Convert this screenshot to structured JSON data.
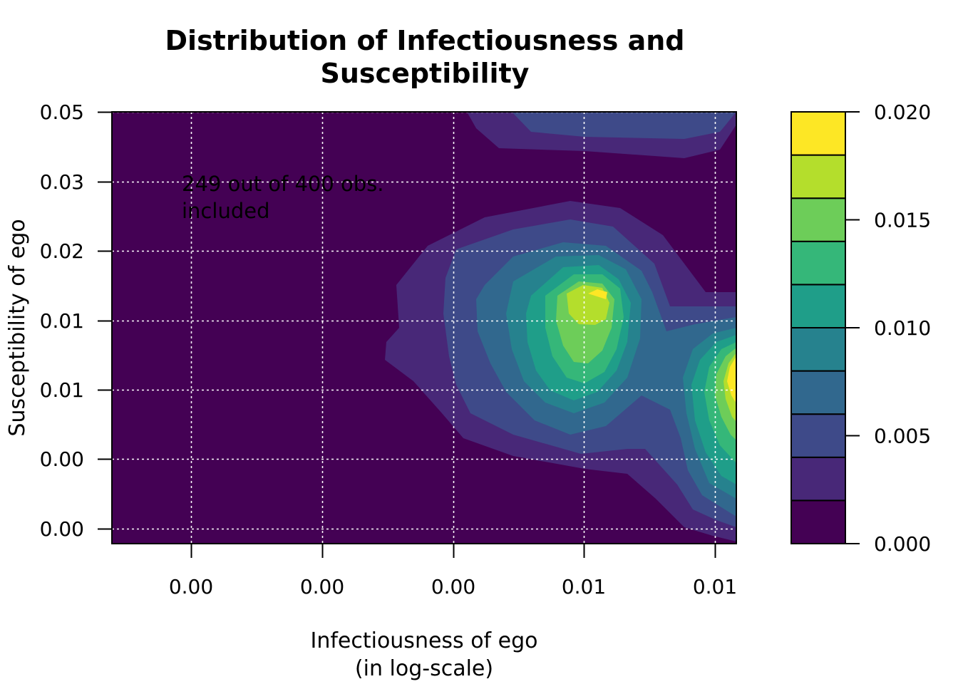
{
  "chart_data": {
    "type": "heatmap",
    "title": [
      "Distribution of Infectiousness and",
      "Susceptibility"
    ],
    "xlabel": [
      "Infectiousness of ego",
      "(in log-scale)"
    ],
    "ylabel": "Susceptibility of ego",
    "annotation": [
      "249 out of 400 obs.",
      "included"
    ],
    "x_ticks": [
      "0.00",
      "0.00",
      "0.00",
      "0.01",
      "0.01"
    ],
    "y_ticks": [
      "0.05",
      "0.03",
      "0.02",
      "0.01",
      "0.01",
      "0.00",
      "0.00"
    ],
    "grid": true,
    "legend": {
      "position": "right",
      "levels": [
        0.0,
        0.002,
        0.004,
        0.006,
        0.008,
        0.01,
        0.012,
        0.014,
        0.016,
        0.018,
        0.02
      ],
      "tick_labels": [
        "0.000",
        "0.005",
        "0.010",
        "0.015",
        "0.020"
      ],
      "tick_values": [
        0.0,
        0.005,
        0.01,
        0.015,
        0.02
      ],
      "colors": [
        "#440154",
        "#482878",
        "#3E4A89",
        "#31688E",
        "#26828E",
        "#1F9E89",
        "#35B779",
        "#6DCD59",
        "#B4DE2C",
        "#FDE725"
      ]
    },
    "density_peaks": [
      {
        "location": "center (x tick 4, y between tick 4 and 5)",
        "density": 0.02
      },
      {
        "location": "right edge (x beyond tick 5, y near tick 5)",
        "density": 0.02
      }
    ]
  }
}
